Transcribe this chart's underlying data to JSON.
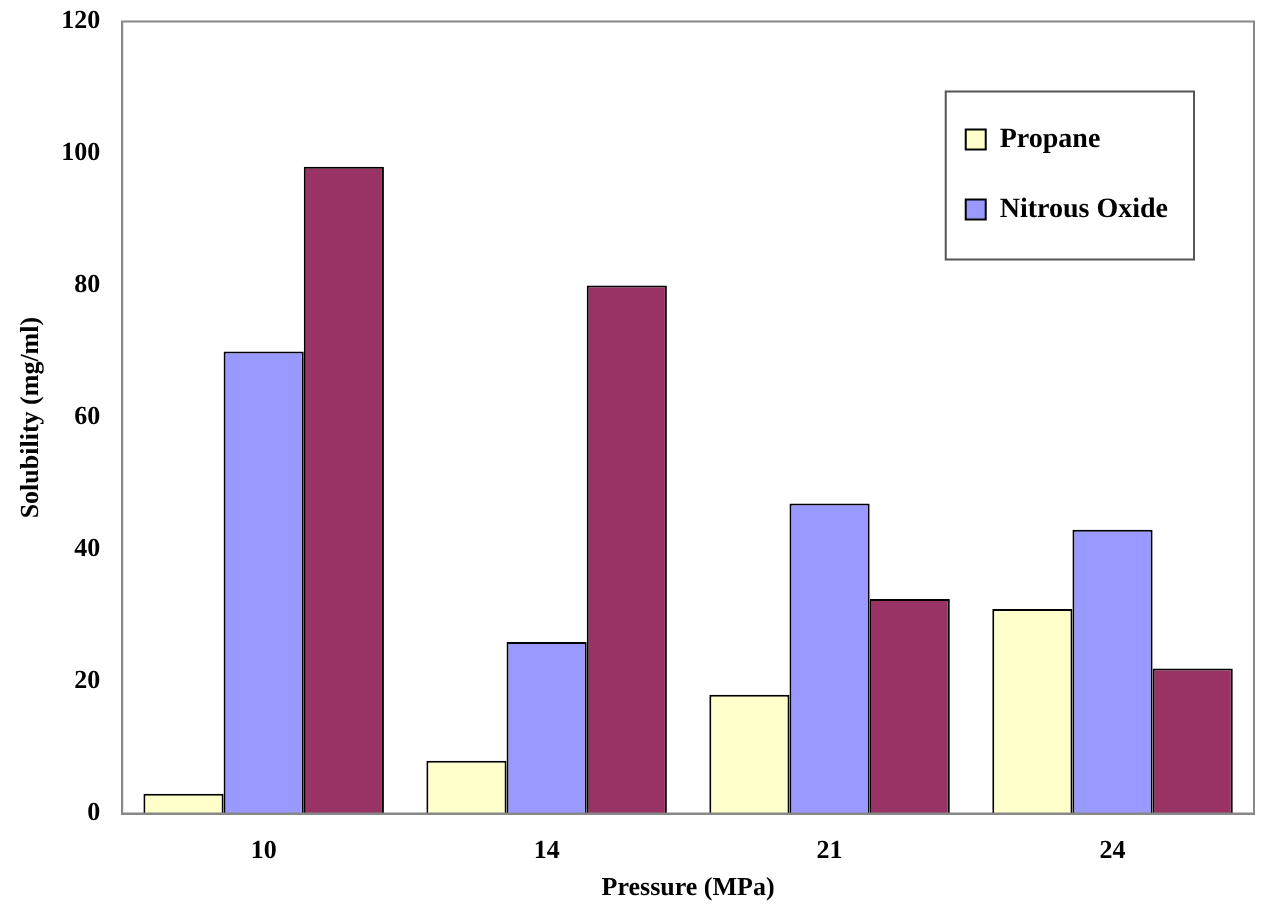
{
  "chart_data": {
    "type": "bar",
    "xlabel": "Pressure (MPa)",
    "ylabel": "Solubility (mg/ml)",
    "categories": [
      "10",
      "14",
      "21",
      "24"
    ],
    "series": [
      {
        "name": "Propane",
        "color": "#ffffcc",
        "values": [
          3,
          8,
          18,
          31
        ]
      },
      {
        "name": "Nitrous Oxide",
        "color": "#9999ff",
        "values": [
          70,
          26,
          47,
          43
        ]
      },
      {
        "color": "#993366",
        "values": [
          98,
          80,
          32.5,
          22
        ]
      }
    ],
    "ylim": [
      0,
      120
    ],
    "yticks": [
      0,
      20,
      40,
      60,
      80,
      100,
      120
    ],
    "grid": false,
    "legend": "top right"
  }
}
